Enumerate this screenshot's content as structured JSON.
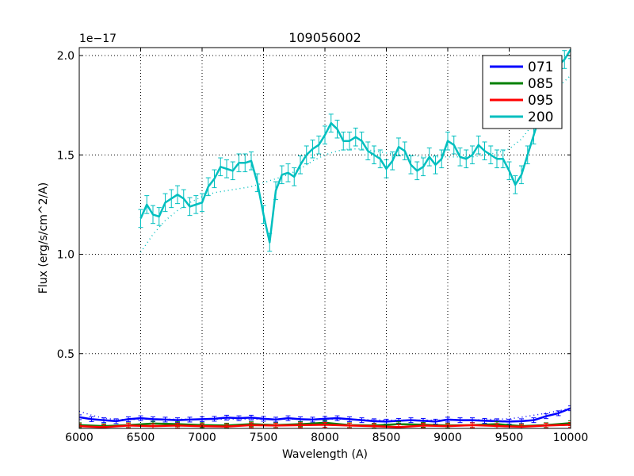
{
  "chart_data": {
    "type": "line",
    "title": "109056002",
    "xlabel": "Wavelength (A)",
    "ylabel": "Flux (erg/s/cm^2/A)",
    "y_offset_label": "1e−17",
    "xlim": [
      6000,
      10000
    ],
    "ylim": [
      0.125,
      2.03
    ],
    "xticks": [
      6000,
      6500,
      7000,
      7500,
      8000,
      8500,
      9000,
      9500,
      10000
    ],
    "xtick_labels": [
      "6000",
      "6500",
      "7000",
      "7500",
      "8000",
      "8500",
      "9000",
      "9500",
      "10000"
    ],
    "yticks": [
      0.5,
      1.0,
      1.5,
      2.0
    ],
    "ytick_labels": [
      "0.5",
      "1.0",
      "1.5",
      "2.0"
    ],
    "grid": true,
    "legend_position": "upper right",
    "series": [
      {
        "name": "071",
        "color": "#0000ff",
        "x": [
          6000,
          6100,
          6200,
          6300,
          6400,
          6500,
          6600,
          6700,
          6800,
          6900,
          7000,
          7100,
          7200,
          7300,
          7400,
          7500,
          7600,
          7700,
          7800,
          7900,
          8000,
          8100,
          8200,
          8300,
          8400,
          8500,
          8600,
          8700,
          8800,
          8900,
          9000,
          9100,
          9200,
          9300,
          9400,
          9500,
          9600,
          9700,
          9800,
          9900,
          10000
        ],
        "values": [
          0.18,
          0.17,
          0.165,
          0.16,
          0.17,
          0.175,
          0.17,
          0.168,
          0.165,
          0.168,
          0.17,
          0.172,
          0.178,
          0.175,
          0.178,
          0.172,
          0.168,
          0.175,
          0.17,
          0.168,
          0.172,
          0.175,
          0.17,
          0.165,
          0.16,
          0.158,
          0.162,
          0.165,
          0.162,
          0.158,
          0.168,
          0.165,
          0.165,
          0.162,
          0.16,
          0.158,
          0.16,
          0.165,
          0.185,
          0.2,
          0.225
        ],
        "model_values": [
          0.21,
          0.19,
          0.175,
          0.168,
          0.168,
          0.17,
          0.17,
          0.17,
          0.17,
          0.17,
          0.17,
          0.17,
          0.17,
          0.17,
          0.17,
          0.17,
          0.17,
          0.17,
          0.17,
          0.17,
          0.17,
          0.17,
          0.17,
          0.168,
          0.166,
          0.165,
          0.165,
          0.165,
          0.165,
          0.165,
          0.165,
          0.165,
          0.166,
          0.168,
          0.17,
          0.172,
          0.18,
          0.19,
          0.2,
          0.212,
          0.225
        ]
      },
      {
        "name": "085",
        "color": "#008000",
        "x": [
          6000,
          6200,
          6400,
          6600,
          6800,
          7000,
          7200,
          7400,
          7600,
          7800,
          8000,
          8200,
          8400,
          8600,
          8800,
          9000,
          9200,
          9400,
          9600,
          9800,
          10000
        ],
        "values": [
          0.14,
          0.135,
          0.14,
          0.148,
          0.145,
          0.14,
          0.138,
          0.145,
          0.14,
          0.145,
          0.152,
          0.14,
          0.138,
          0.145,
          0.142,
          0.138,
          0.14,
          0.145,
          0.135,
          0.14,
          0.15
        ]
      },
      {
        "name": "095",
        "color": "#ff0000",
        "x": [
          6000,
          6200,
          6400,
          6600,
          6800,
          7000,
          7200,
          7400,
          7600,
          7800,
          8000,
          8200,
          8400,
          8600,
          8800,
          9000,
          9200,
          9400,
          9600,
          9800,
          10000
        ],
        "values": [
          0.135,
          0.13,
          0.138,
          0.135,
          0.138,
          0.135,
          0.133,
          0.14,
          0.138,
          0.14,
          0.142,
          0.138,
          0.135,
          0.13,
          0.138,
          0.135,
          0.14,
          0.136,
          0.132,
          0.138,
          0.142
        ]
      },
      {
        "name": "200",
        "color": "#00bfbf",
        "x": [
          6500,
          6550,
          6600,
          6650,
          6700,
          6750,
          6800,
          6850,
          6900,
          6950,
          7000,
          7050,
          7100,
          7150,
          7200,
          7250,
          7300,
          7350,
          7400,
          7450,
          7500,
          7550,
          7600,
          7650,
          7700,
          7750,
          7800,
          7850,
          7900,
          7950,
          8000,
          8050,
          8100,
          8150,
          8200,
          8250,
          8300,
          8350,
          8400,
          8450,
          8500,
          8550,
          8600,
          8650,
          8700,
          8750,
          8800,
          8850,
          8900,
          8950,
          9000,
          9050,
          9100,
          9150,
          9200,
          9250,
          9300,
          9350,
          9400,
          9450,
          9500,
          9550,
          9600,
          9650,
          9700,
          9750,
          9800,
          9850,
          9900,
          9950,
          10000
        ],
        "values": [
          1.18,
          1.25,
          1.2,
          1.19,
          1.26,
          1.28,
          1.3,
          1.28,
          1.24,
          1.25,
          1.26,
          1.34,
          1.38,
          1.44,
          1.43,
          1.42,
          1.46,
          1.46,
          1.47,
          1.36,
          1.2,
          1.06,
          1.32,
          1.4,
          1.41,
          1.39,
          1.45,
          1.5,
          1.53,
          1.55,
          1.6,
          1.66,
          1.63,
          1.57,
          1.57,
          1.59,
          1.57,
          1.52,
          1.5,
          1.48,
          1.43,
          1.47,
          1.54,
          1.52,
          1.45,
          1.42,
          1.44,
          1.49,
          1.45,
          1.48,
          1.57,
          1.55,
          1.49,
          1.48,
          1.5,
          1.55,
          1.52,
          1.5,
          1.48,
          1.48,
          1.42,
          1.35,
          1.4,
          1.5,
          1.6,
          1.7,
          1.8,
          1.88,
          1.95,
          1.98,
          2.03
        ],
        "errors": 0.045,
        "model_x": [
          6500,
          6600,
          6700,
          6800,
          6900,
          7000,
          7100,
          7200,
          7300,
          7400,
          7500,
          7600,
          7700,
          7800,
          7900,
          8000,
          8100,
          8200,
          8300,
          8400,
          8500,
          8600,
          8700,
          8800,
          8900,
          9000,
          9100,
          9200,
          9300,
          9400,
          9500,
          9600,
          9700,
          9800,
          9900,
          10000
        ],
        "model_values": [
          1.01,
          1.1,
          1.17,
          1.22,
          1.26,
          1.29,
          1.31,
          1.32,
          1.33,
          1.34,
          1.36,
          1.38,
          1.4,
          1.43,
          1.47,
          1.5,
          1.52,
          1.53,
          1.53,
          1.52,
          1.51,
          1.5,
          1.5,
          1.49,
          1.49,
          1.49,
          1.49,
          1.49,
          1.5,
          1.51,
          1.53,
          1.58,
          1.66,
          1.76,
          1.84,
          1.9
        ]
      }
    ]
  }
}
